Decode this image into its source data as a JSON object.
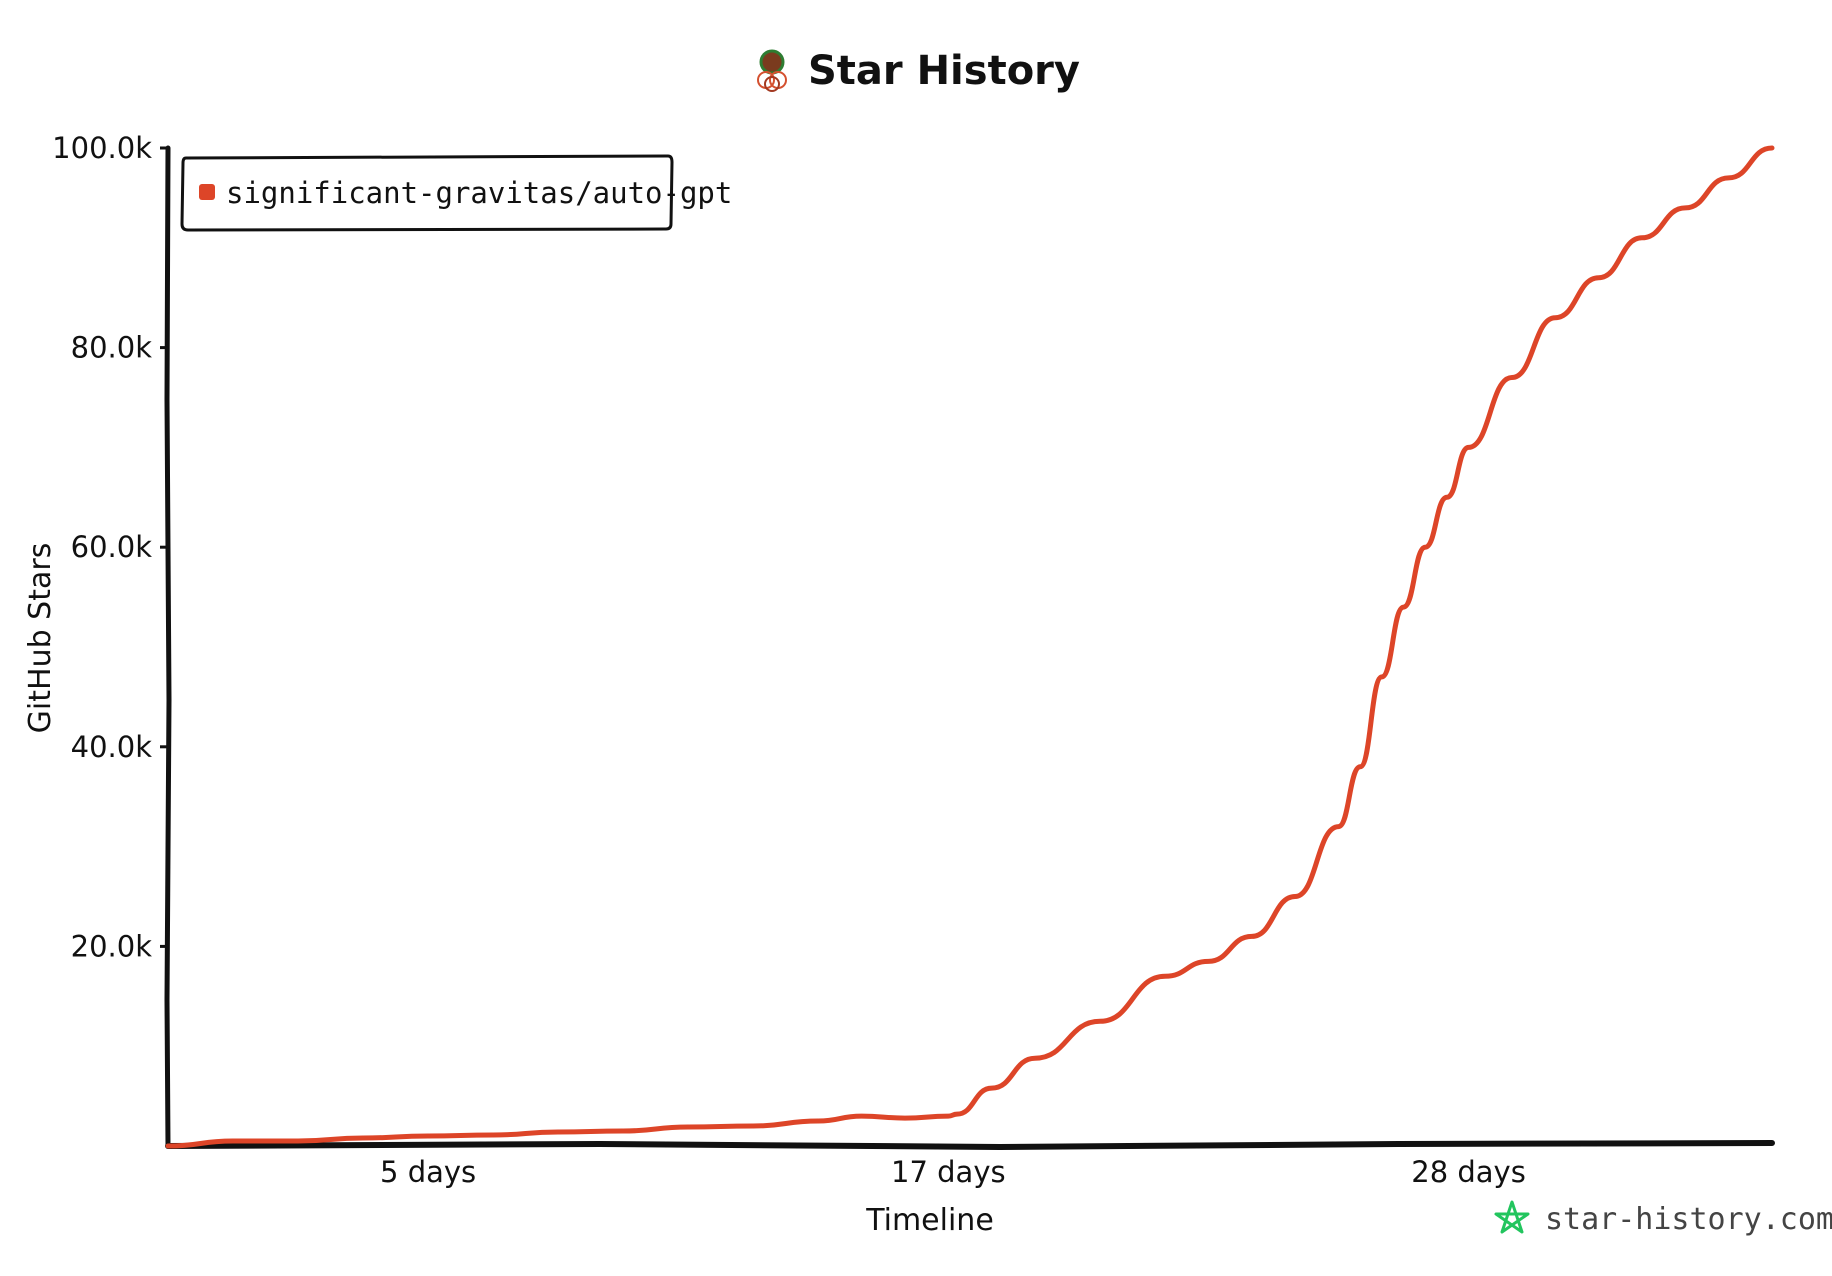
{
  "title": "Star History",
  "watermark": "star-history.com",
  "chart_data": {
    "type": "line",
    "xlabel": "Timeline",
    "ylabel": "GitHub Stars",
    "x_unit": "days",
    "xlim": [
      0,
      37
    ],
    "ylim": [
      0,
      100000
    ],
    "x_ticks": [
      {
        "x": 6,
        "label": "5 days"
      },
      {
        "x": 18,
        "label": "17 days"
      },
      {
        "x": 30,
        "label": "28 days"
      }
    ],
    "y_ticks": [
      {
        "y": 20000,
        "label": "20.0k"
      },
      {
        "y": 40000,
        "label": "40.0k"
      },
      {
        "y": 60000,
        "label": "60.0k"
      },
      {
        "y": 80000,
        "label": "80.0k"
      },
      {
        "y": 100000,
        "label": "100.0k"
      }
    ],
    "grid": false,
    "legend_position": "top-left",
    "series": [
      {
        "name": "significant-gravitas/auto-gpt",
        "color": "#dd4528",
        "x": [
          0,
          1.5,
          3,
          4.5,
          6,
          7.5,
          9,
          10.5,
          12,
          13.5,
          15,
          16,
          17,
          18,
          18.2,
          19,
          20,
          21.5,
          23,
          24,
          25,
          26,
          27,
          27.5,
          28,
          28.5,
          29,
          29.5,
          30,
          31,
          32,
          33,
          34,
          35,
          36,
          37
        ],
        "y": [
          0,
          500,
          500,
          800,
          1000,
          1100,
          1400,
          1500,
          1900,
          2000,
          2500,
          3000,
          2800,
          3000,
          3200,
          5800,
          8800,
          12500,
          17000,
          18500,
          21000,
          25000,
          32000,
          38000,
          47000,
          54000,
          60000,
          65000,
          70000,
          77000,
          83000,
          87000,
          91000,
          94000,
          97000,
          100000
        ]
      }
    ]
  }
}
